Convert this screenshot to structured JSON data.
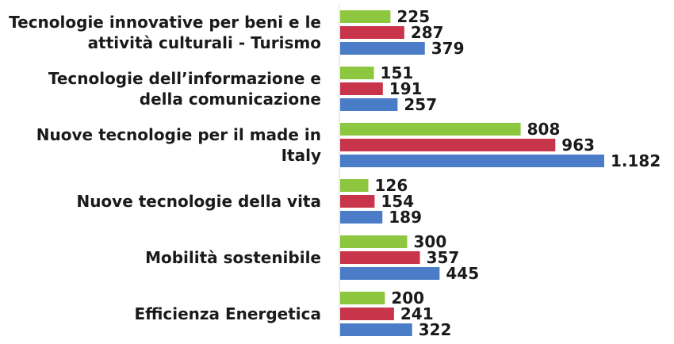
{
  "chart_data": {
    "type": "bar",
    "orientation": "horizontal",
    "title": "",
    "xlabel": "",
    "ylabel": "",
    "grid": false,
    "legend": "none",
    "categories": [
      [
        "Tecnologie innovative per beni e le",
        "attività culturali - Turismo"
      ],
      [
        "Tecnologie dell’informazione e",
        "della comunicazione"
      ],
      [
        "Nuove tecnologie per il made in",
        "Italy"
      ],
      [
        "Nuove tecnologie della vita"
      ],
      [
        "Mobilità sostenibile"
      ],
      [
        "Efficienza Energetica"
      ]
    ],
    "series": [
      {
        "color": "#8DC63F",
        "values": [
          225,
          151,
          808,
          126,
          300,
          200
        ],
        "labels": [
          "225",
          "151",
          "808",
          "126",
          "300",
          "200"
        ]
      },
      {
        "color": "#C8344A",
        "values": [
          287,
          191,
          963,
          154,
          357,
          241
        ],
        "labels": [
          "287",
          "191",
          "963",
          "154",
          "357",
          "241"
        ]
      },
      {
        "color": "#4A7CC7",
        "values": [
          379,
          257,
          1182,
          189,
          445,
          322
        ],
        "labels": [
          "379",
          "257",
          "1.182",
          "189",
          "445",
          "322"
        ]
      }
    ],
    "xlim": [
      0,
      1182
    ]
  }
}
